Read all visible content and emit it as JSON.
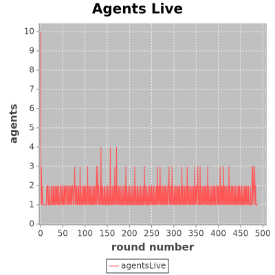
{
  "chart_data": {
    "type": "line",
    "title": "Agents Live",
    "xlabel": "round number",
    "ylabel": "agents",
    "xlim": [
      -3,
      509
    ],
    "ylim": [
      -0.04,
      10.43
    ],
    "xticks": [
      0,
      50,
      100,
      150,
      200,
      250,
      300,
      350,
      400,
      450,
      500
    ],
    "yticks": [
      0,
      1,
      2,
      3,
      4,
      5,
      6,
      7,
      8,
      9,
      10
    ],
    "grid": true,
    "legend": "bottom",
    "series": [
      {
        "name": "agentsLive",
        "color": "#ff5555",
        "x": [
          0,
          1,
          2,
          3,
          4,
          5,
          6,
          7,
          8,
          9,
          10,
          11,
          12,
          13,
          14,
          15,
          16,
          17,
          18,
          19,
          20,
          21,
          22,
          23,
          24,
          25,
          26,
          27,
          28,
          29,
          30,
          31,
          32,
          33,
          34,
          35,
          36,
          37,
          38,
          39,
          40,
          41,
          42,
          43,
          44,
          45,
          46,
          47,
          48,
          49,
          50,
          51,
          52,
          53,
          54,
          55,
          56,
          57,
          58,
          59,
          60,
          61,
          62,
          63,
          64,
          65,
          66,
          67,
          68,
          69,
          70,
          71,
          72,
          73,
          74,
          75,
          76,
          77,
          78,
          79,
          80,
          81,
          82,
          83,
          84,
          85,
          86,
          87,
          88,
          89,
          90,
          91,
          92,
          93,
          94,
          95,
          96,
          97,
          98,
          99,
          100,
          101,
          102,
          103,
          104,
          105,
          106,
          107,
          108,
          109,
          110,
          111,
          112,
          113,
          114,
          115,
          116,
          117,
          118,
          119,
          120,
          121,
          122,
          123,
          124,
          125,
          126,
          127,
          128,
          129,
          130,
          131,
          132,
          133,
          134,
          135,
          136,
          137,
          138,
          139,
          140,
          141,
          142,
          143,
          144,
          145,
          146,
          147,
          148,
          149,
          150,
          151,
          152,
          153,
          154,
          155,
          156,
          157,
          158,
          159,
          160,
          161,
          162,
          163,
          164,
          165,
          166,
          167,
          168,
          169,
          170,
          171,
          172,
          173,
          174,
          175,
          176,
          177,
          178,
          179,
          180,
          181,
          182,
          183,
          184,
          185,
          186,
          187,
          188,
          189,
          190,
          191,
          192,
          193,
          194,
          195,
          196,
          197,
          198,
          199,
          200,
          201,
          202,
          203,
          204,
          205,
          206,
          207,
          208,
          209,
          210,
          211,
          212,
          213,
          214,
          215,
          216,
          217,
          218,
          219,
          220,
          221,
          222,
          223,
          224,
          225,
          226,
          227,
          228,
          229,
          230,
          231,
          232,
          233,
          234,
          235,
          236,
          237,
          238,
          239,
          240,
          241,
          242,
          243,
          244,
          245,
          246,
          247,
          248,
          249,
          250,
          251,
          252,
          253,
          254,
          255,
          256,
          257,
          258,
          259,
          260,
          261,
          262,
          263,
          264,
          265,
          266,
          267,
          268,
          269,
          270,
          271,
          272,
          273,
          274,
          275,
          276,
          277,
          278,
          279,
          280,
          281,
          282,
          283,
          284,
          285,
          286,
          287,
          288,
          289,
          290,
          291,
          292,
          293,
          294,
          295,
          296,
          297,
          298,
          299,
          300,
          301,
          302,
          303,
          304,
          305,
          306,
          307,
          308,
          309,
          310,
          311,
          312,
          313,
          314,
          315,
          316,
          317,
          318,
          319,
          320,
          321,
          322,
          323,
          324,
          325,
          326,
          327,
          328,
          329,
          330,
          331,
          332,
          333,
          334,
          335,
          336,
          337,
          338,
          339,
          340,
          341,
          342,
          343,
          344,
          345,
          346,
          347,
          348,
          349,
          350,
          351,
          352,
          353,
          354,
          355,
          356,
          357,
          358,
          359,
          360,
          361,
          362,
          363,
          364,
          365,
          366,
          367,
          368,
          369,
          370,
          371,
          372,
          373,
          374,
          375,
          376,
          377,
          378,
          379,
          380,
          381,
          382,
          383,
          384,
          385,
          386,
          387,
          388,
          389,
          390,
          391,
          392,
          393,
          394,
          395,
          396,
          397,
          398,
          399,
          400,
          401,
          402,
          403,
          404,
          405,
          406,
          407,
          408,
          409,
          410,
          411,
          412,
          413,
          414,
          415,
          416,
          417,
          418,
          419,
          420,
          421,
          422,
          423,
          424,
          425,
          426,
          427,
          428,
          429,
          430,
          431,
          432,
          433,
          434,
          435,
          436,
          437,
          438,
          439,
          440,
          441,
          442,
          443,
          444,
          445,
          446,
          447,
          448,
          449,
          450,
          451,
          452,
          453,
          454,
          455,
          456,
          457,
          458,
          459,
          460,
          461,
          462,
          463,
          464,
          465,
          466,
          467,
          468,
          469,
          470,
          471,
          472,
          473,
          474,
          475,
          476,
          477,
          478,
          479,
          480,
          481,
          482,
          483,
          484,
          485,
          486,
          487,
          488,
          489
        ],
        "values": [
          10,
          1,
          3,
          1,
          2,
          1,
          1,
          1,
          1,
          1,
          1,
          1,
          1,
          1,
          2,
          1,
          2,
          2,
          1,
          1,
          2,
          1,
          1,
          1,
          2,
          1,
          2,
          1,
          1,
          2,
          1,
          2,
          1,
          1,
          2,
          1,
          2,
          1,
          2,
          1,
          1,
          2,
          1,
          1,
          2,
          2,
          1,
          1,
          2,
          1,
          2,
          1,
          1,
          2,
          1,
          2,
          1,
          2,
          2,
          1,
          1,
          2,
          1,
          2,
          1,
          1,
          2,
          1,
          2,
          1,
          2,
          1,
          2,
          2,
          1,
          1,
          2,
          3,
          1,
          2,
          1,
          2,
          1,
          1,
          2,
          1,
          2,
          1,
          1,
          3,
          1,
          2,
          1,
          1,
          2,
          1,
          1,
          2,
          1,
          2,
          1,
          2,
          1,
          1,
          2,
          1,
          3,
          1,
          2,
          1,
          1,
          2,
          1,
          2,
          1,
          1,
          2,
          1,
          1,
          2,
          1,
          2,
          1,
          2,
          1,
          1,
          3,
          1,
          2,
          3,
          1,
          2,
          1,
          1,
          2,
          1,
          4,
          1,
          2,
          1,
          2,
          1,
          1,
          2,
          1,
          2,
          1,
          1,
          2,
          1,
          1,
          2,
          1,
          1,
          2,
          1,
          1,
          4,
          1,
          2,
          1,
          1,
          2,
          1,
          1,
          2,
          1,
          3,
          1,
          2,
          1,
          4,
          1,
          2,
          1,
          1,
          2,
          1,
          2,
          1,
          1,
          2,
          1,
          1,
          2,
          1,
          1,
          2,
          1,
          1,
          2,
          1,
          3,
          1,
          2,
          1,
          1,
          2,
          1,
          1,
          2,
          1,
          1,
          2,
          1,
          1,
          2,
          1,
          1,
          2,
          1,
          1,
          3,
          1,
          2,
          1,
          1,
          2,
          1,
          2,
          1,
          1,
          2,
          1,
          1,
          2,
          1,
          1,
          2,
          1,
          1,
          2,
          1,
          1,
          3,
          1,
          2,
          1,
          1,
          2,
          1,
          1,
          2,
          1,
          1,
          2,
          1,
          1,
          2,
          1,
          2,
          1,
          1,
          2,
          1,
          2,
          1,
          1,
          2,
          1,
          1,
          2,
          1,
          3,
          1,
          2,
          1,
          2,
          1,
          3,
          1,
          2,
          1,
          1,
          2,
          1,
          2,
          1,
          1,
          2,
          1,
          2,
          1,
          2,
          1,
          1,
          2,
          1,
          2,
          3,
          1,
          2,
          1,
          1,
          2,
          1,
          3,
          1,
          2,
          1,
          1,
          2,
          1,
          1,
          2,
          1,
          2,
          1,
          1,
          2,
          1,
          2,
          1,
          2,
          1,
          1,
          2,
          1,
          3,
          1,
          2,
          1,
          1,
          2,
          1,
          2,
          1,
          1,
          2,
          1,
          3,
          1,
          2,
          1,
          2,
          1,
          1,
          2,
          1,
          2,
          1,
          1,
          2,
          1,
          2,
          1,
          1,
          3,
          1,
          2,
          1,
          2,
          1,
          2,
          3,
          1,
          2,
          1,
          1,
          3,
          1,
          2,
          1,
          1,
          2,
          1,
          2,
          1,
          1,
          2,
          1,
          2,
          1,
          2,
          1,
          1,
          3,
          1,
          2,
          1,
          1,
          2,
          1,
          1,
          2,
          1,
          2,
          1,
          1,
          2,
          1,
          2,
          1,
          2,
          1,
          1,
          2,
          2,
          1,
          2,
          1,
          2,
          1,
          1,
          3,
          1,
          2,
          1,
          2,
          1,
          2,
          1,
          3,
          1,
          2,
          1,
          1,
          2,
          1,
          2,
          1,
          1,
          2,
          1,
          3,
          1,
          2,
          1,
          1,
          2,
          1,
          2,
          1,
          2,
          1,
          1,
          2,
          1,
          2,
          1,
          1,
          2,
          1,
          1,
          2,
          1,
          2,
          1,
          2,
          1,
          1,
          2,
          1,
          2,
          1,
          1,
          2,
          1,
          1,
          2,
          1,
          2,
          1,
          2,
          1,
          2,
          1,
          1,
          2,
          1,
          1,
          1,
          2,
          1,
          1,
          1,
          3,
          1,
          3,
          2,
          1,
          2,
          3,
          1,
          2,
          1,
          1,
          1,
          1,
          1
        ]
      }
    ]
  }
}
